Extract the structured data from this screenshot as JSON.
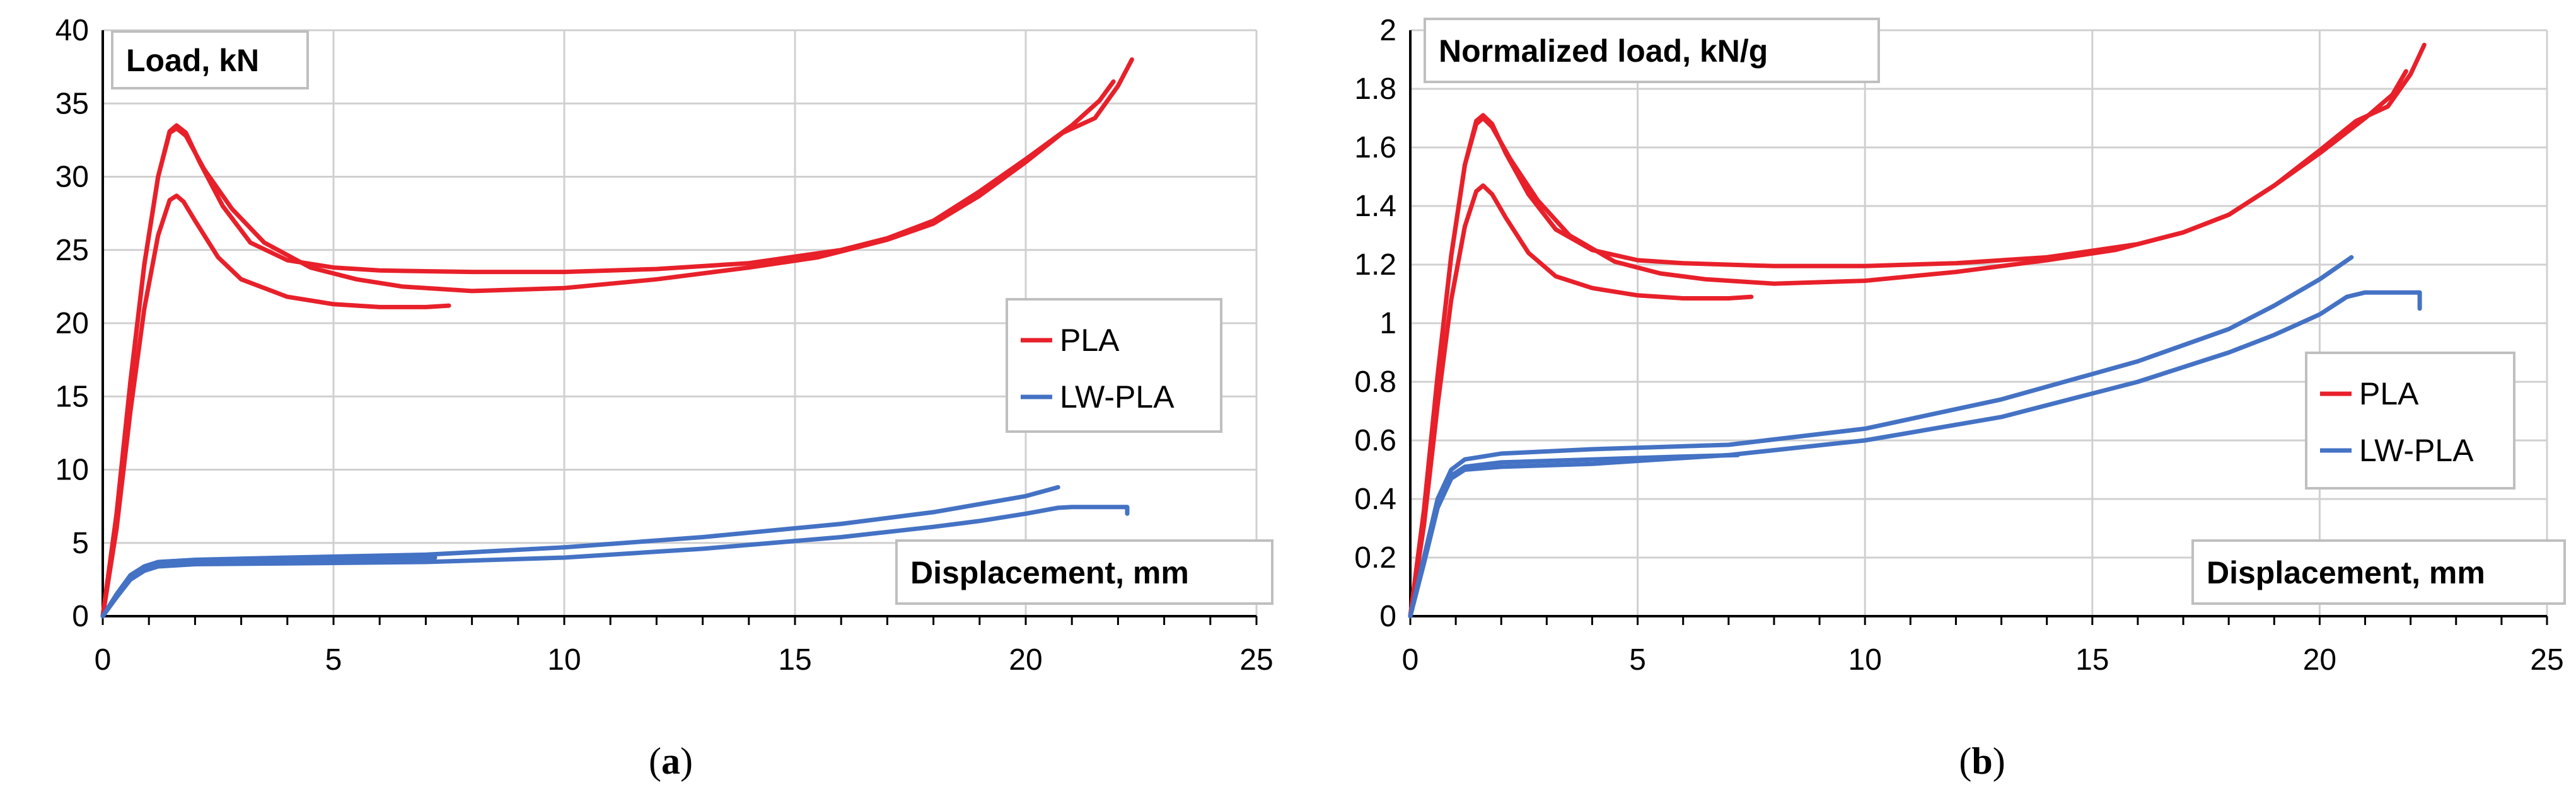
{
  "chart_data": [
    {
      "type": "line",
      "title": "Load, kN",
      "xlabel": "Displacement, mm",
      "ylabel": "Load, kN",
      "xlim": [
        0,
        25
      ],
      "ylim": [
        0,
        40
      ],
      "xticks": [
        0,
        5,
        10,
        15,
        20,
        25
      ],
      "yticks": [
        0,
        5,
        10,
        15,
        20,
        25,
        30,
        35,
        40
      ],
      "grid": true,
      "legend_position": "right",
      "caption_letter": "a",
      "legend": [
        {
          "name": "PLA",
          "color": "#e8202a"
        },
        {
          "name": "LW-PLA",
          "color": "#4472c4"
        }
      ],
      "series": [
        {
          "name": "PLA",
          "color": "#e8202a",
          "points": [
            [
              0,
              0
            ],
            [
              0.3,
              6
            ],
            [
              0.6,
              14
            ],
            [
              0.9,
              21
            ],
            [
              1.2,
              26
            ],
            [
              1.45,
              28.4
            ],
            [
              1.6,
              28.7
            ],
            [
              1.75,
              28.3
            ],
            [
              2.0,
              27.0
            ],
            [
              2.5,
              24.5
            ],
            [
              3,
              23.0
            ],
            [
              4,
              21.8
            ],
            [
              5,
              21.3
            ],
            [
              6,
              21.1
            ],
            [
              7,
              21.1
            ],
            [
              7.5,
              21.2
            ]
          ]
        },
        {
          "name": "PLA",
          "color": "#e8202a",
          "points": [
            [
              0,
              0
            ],
            [
              0.3,
              7
            ],
            [
              0.6,
              16
            ],
            [
              0.9,
              24
            ],
            [
              1.2,
              30
            ],
            [
              1.45,
              33.1
            ],
            [
              1.6,
              33.5
            ],
            [
              1.8,
              33.0
            ],
            [
              2.1,
              31.0
            ],
            [
              2.6,
              28.0
            ],
            [
              3.2,
              25.5
            ],
            [
              4,
              24.3
            ],
            [
              5,
              23.8
            ],
            [
              6,
              23.6
            ],
            [
              8,
              23.5
            ],
            [
              10,
              23.5
            ],
            [
              12,
              23.7
            ],
            [
              14,
              24.1
            ],
            [
              16,
              25.0
            ],
            [
              17,
              25.8
            ],
            [
              18,
              27.0
            ],
            [
              19,
              29.0
            ],
            [
              20,
              31.2
            ],
            [
              21,
              33.5
            ],
            [
              21.6,
              35.2
            ],
            [
              21.9,
              36.5
            ]
          ]
        },
        {
          "name": "PLA",
          "color": "#e8202a",
          "points": [
            [
              0,
              0
            ],
            [
              0.3,
              7
            ],
            [
              0.6,
              16
            ],
            [
              0.9,
              24
            ],
            [
              1.2,
              30
            ],
            [
              1.45,
              33.0
            ],
            [
              1.6,
              33.3
            ],
            [
              1.8,
              32.8
            ],
            [
              2.2,
              30.5
            ],
            [
              2.8,
              27.8
            ],
            [
              3.5,
              25.5
            ],
            [
              4.5,
              23.8
            ],
            [
              5.5,
              23.0
            ],
            [
              6.5,
              22.5
            ],
            [
              8,
              22.2
            ],
            [
              10,
              22.4
            ],
            [
              12,
              23.0
            ],
            [
              14,
              23.8
            ],
            [
              15.5,
              24.5
            ],
            [
              17,
              25.7
            ],
            [
              18,
              26.8
            ],
            [
              19,
              28.7
            ],
            [
              20,
              31.0
            ],
            [
              20.8,
              33.0
            ],
            [
              21.5,
              34.0
            ],
            [
              22,
              36.2
            ],
            [
              22.3,
              38.0
            ]
          ]
        },
        {
          "name": "LW-PLA",
          "color": "#4472c4",
          "points": [
            [
              0,
              0
            ],
            [
              0.3,
              1.5
            ],
            [
              0.6,
              2.8
            ],
            [
              0.9,
              3.4
            ],
            [
              1.2,
              3.7
            ],
            [
              2,
              3.85
            ],
            [
              4,
              4.0
            ],
            [
              7,
              4.2
            ],
            [
              10,
              4.7
            ],
            [
              13,
              5.4
            ],
            [
              16,
              6.3
            ],
            [
              18,
              7.1
            ],
            [
              20,
              8.2
            ],
            [
              20.7,
              8.8
            ]
          ]
        },
        {
          "name": "LW-PLA",
          "color": "#4472c4",
          "points": [
            [
              0,
              0
            ],
            [
              0.3,
              1.3
            ],
            [
              0.6,
              2.5
            ],
            [
              0.9,
              3.1
            ],
            [
              1.2,
              3.4
            ],
            [
              2,
              3.55
            ],
            [
              4,
              3.6
            ],
            [
              7,
              3.7
            ],
            [
              10,
              4.0
            ],
            [
              13,
              4.6
            ],
            [
              16,
              5.4
            ],
            [
              18,
              6.1
            ],
            [
              19,
              6.5
            ],
            [
              20,
              7.0
            ],
            [
              20.7,
              7.4
            ],
            [
              21,
              7.45
            ],
            [
              22.2,
              7.45
            ],
            [
              22.2,
              7.0
            ]
          ]
        },
        {
          "name": "LW-PLA",
          "color": "#4472c4",
          "points": [
            [
              0,
              0
            ],
            [
              0.3,
              1.4
            ],
            [
              0.6,
              2.6
            ],
            [
              0.9,
              3.3
            ],
            [
              1.2,
              3.6
            ],
            [
              2,
              3.75
            ],
            [
              4,
              3.85
            ],
            [
              6,
              3.95
            ],
            [
              7.2,
              4.0
            ]
          ]
        }
      ]
    },
    {
      "type": "line",
      "title": "Normalized load, kN/g",
      "xlabel": "Displacement, mm",
      "ylabel": "Normalized load, kN/g",
      "xlim": [
        0,
        25
      ],
      "ylim": [
        0,
        2
      ],
      "xticks": [
        0,
        5,
        10,
        15,
        20,
        25
      ],
      "yticks": [
        0,
        0.2,
        0.4,
        0.6,
        0.8,
        1,
        1.2,
        1.4,
        1.6,
        1.8,
        2
      ],
      "grid": true,
      "legend_position": "right",
      "caption_letter": "b",
      "legend": [
        {
          "name": "PLA",
          "color": "#e8202a"
        },
        {
          "name": "LW-PLA",
          "color": "#4472c4"
        }
      ],
      "series": [
        {
          "name": "PLA",
          "color": "#e8202a",
          "points": [
            [
              0,
              0
            ],
            [
              0.3,
              0.31
            ],
            [
              0.6,
              0.72
            ],
            [
              0.9,
              1.08
            ],
            [
              1.2,
              1.33
            ],
            [
              1.45,
              1.45
            ],
            [
              1.6,
              1.47
            ],
            [
              1.8,
              1.44
            ],
            [
              2.1,
              1.36
            ],
            [
              2.6,
              1.24
            ],
            [
              3.2,
              1.16
            ],
            [
              4,
              1.12
            ],
            [
              5,
              1.095
            ],
            [
              6,
              1.085
            ],
            [
              7,
              1.085
            ],
            [
              7.5,
              1.09
            ]
          ]
        },
        {
          "name": "PLA",
          "color": "#e8202a",
          "points": [
            [
              0,
              0
            ],
            [
              0.3,
              0.36
            ],
            [
              0.6,
              0.82
            ],
            [
              0.9,
              1.23
            ],
            [
              1.2,
              1.54
            ],
            [
              1.45,
              1.69
            ],
            [
              1.6,
              1.71
            ],
            [
              1.8,
              1.68
            ],
            [
              2.1,
              1.58
            ],
            [
              2.6,
              1.44
            ],
            [
              3.2,
              1.32
            ],
            [
              4,
              1.25
            ],
            [
              5,
              1.215
            ],
            [
              6,
              1.205
            ],
            [
              8,
              1.195
            ],
            [
              10,
              1.195
            ],
            [
              12,
              1.205
            ],
            [
              14,
              1.225
            ],
            [
              16,
              1.27
            ],
            [
              17,
              1.31
            ],
            [
              18,
              1.37
            ],
            [
              19,
              1.47
            ],
            [
              20,
              1.58
            ],
            [
              21,
              1.7
            ],
            [
              21.6,
              1.78
            ],
            [
              21.9,
              1.86
            ]
          ]
        },
        {
          "name": "PLA",
          "color": "#e8202a",
          "points": [
            [
              0,
              0
            ],
            [
              0.3,
              0.36
            ],
            [
              0.6,
              0.82
            ],
            [
              0.9,
              1.23
            ],
            [
              1.2,
              1.54
            ],
            [
              1.45,
              1.68
            ],
            [
              1.6,
              1.7
            ],
            [
              1.8,
              1.67
            ],
            [
              2.2,
              1.56
            ],
            [
              2.8,
              1.42
            ],
            [
              3.5,
              1.3
            ],
            [
              4.5,
              1.21
            ],
            [
              5.5,
              1.17
            ],
            [
              6.5,
              1.15
            ],
            [
              8,
              1.135
            ],
            [
              10,
              1.145
            ],
            [
              12,
              1.175
            ],
            [
              14,
              1.215
            ],
            [
              15.5,
              1.25
            ],
            [
              17,
              1.31
            ],
            [
              18,
              1.37
            ],
            [
              19,
              1.47
            ],
            [
              20,
              1.59
            ],
            [
              20.8,
              1.69
            ],
            [
              21.5,
              1.74
            ],
            [
              22,
              1.85
            ],
            [
              22.3,
              1.95
            ]
          ]
        },
        {
          "name": "LW-PLA",
          "color": "#4472c4",
          "points": [
            [
              0,
              0
            ],
            [
              0.3,
              0.2
            ],
            [
              0.6,
              0.4
            ],
            [
              0.9,
              0.5
            ],
            [
              1.2,
              0.535
            ],
            [
              2,
              0.555
            ],
            [
              4,
              0.57
            ],
            [
              7,
              0.585
            ],
            [
              10,
              0.64
            ],
            [
              13,
              0.74
            ],
            [
              16,
              0.87
            ],
            [
              18,
              0.98
            ],
            [
              19,
              1.06
            ],
            [
              20,
              1.15
            ],
            [
              20.7,
              1.225
            ]
          ]
        },
        {
          "name": "LW-PLA",
          "color": "#4472c4",
          "points": [
            [
              0,
              0
            ],
            [
              0.3,
              0.18
            ],
            [
              0.6,
              0.37
            ],
            [
              0.9,
              0.47
            ],
            [
              1.2,
              0.5
            ],
            [
              2,
              0.51
            ],
            [
              4,
              0.52
            ],
            [
              7,
              0.55
            ],
            [
              10,
              0.6
            ],
            [
              13,
              0.68
            ],
            [
              16,
              0.8
            ],
            [
              18,
              0.9
            ],
            [
              19,
              0.96
            ],
            [
              20,
              1.03
            ],
            [
              20.6,
              1.09
            ],
            [
              21,
              1.105
            ],
            [
              22.2,
              1.105
            ],
            [
              22.2,
              1.05
            ]
          ]
        },
        {
          "name": "LW-PLA",
          "color": "#4472c4",
          "points": [
            [
              0,
              0
            ],
            [
              0.3,
              0.19
            ],
            [
              0.6,
              0.38
            ],
            [
              0.9,
              0.48
            ],
            [
              1.2,
              0.51
            ],
            [
              2,
              0.525
            ],
            [
              4,
              0.535
            ],
            [
              6,
              0.545
            ],
            [
              7.2,
              0.55
            ]
          ]
        }
      ]
    }
  ]
}
